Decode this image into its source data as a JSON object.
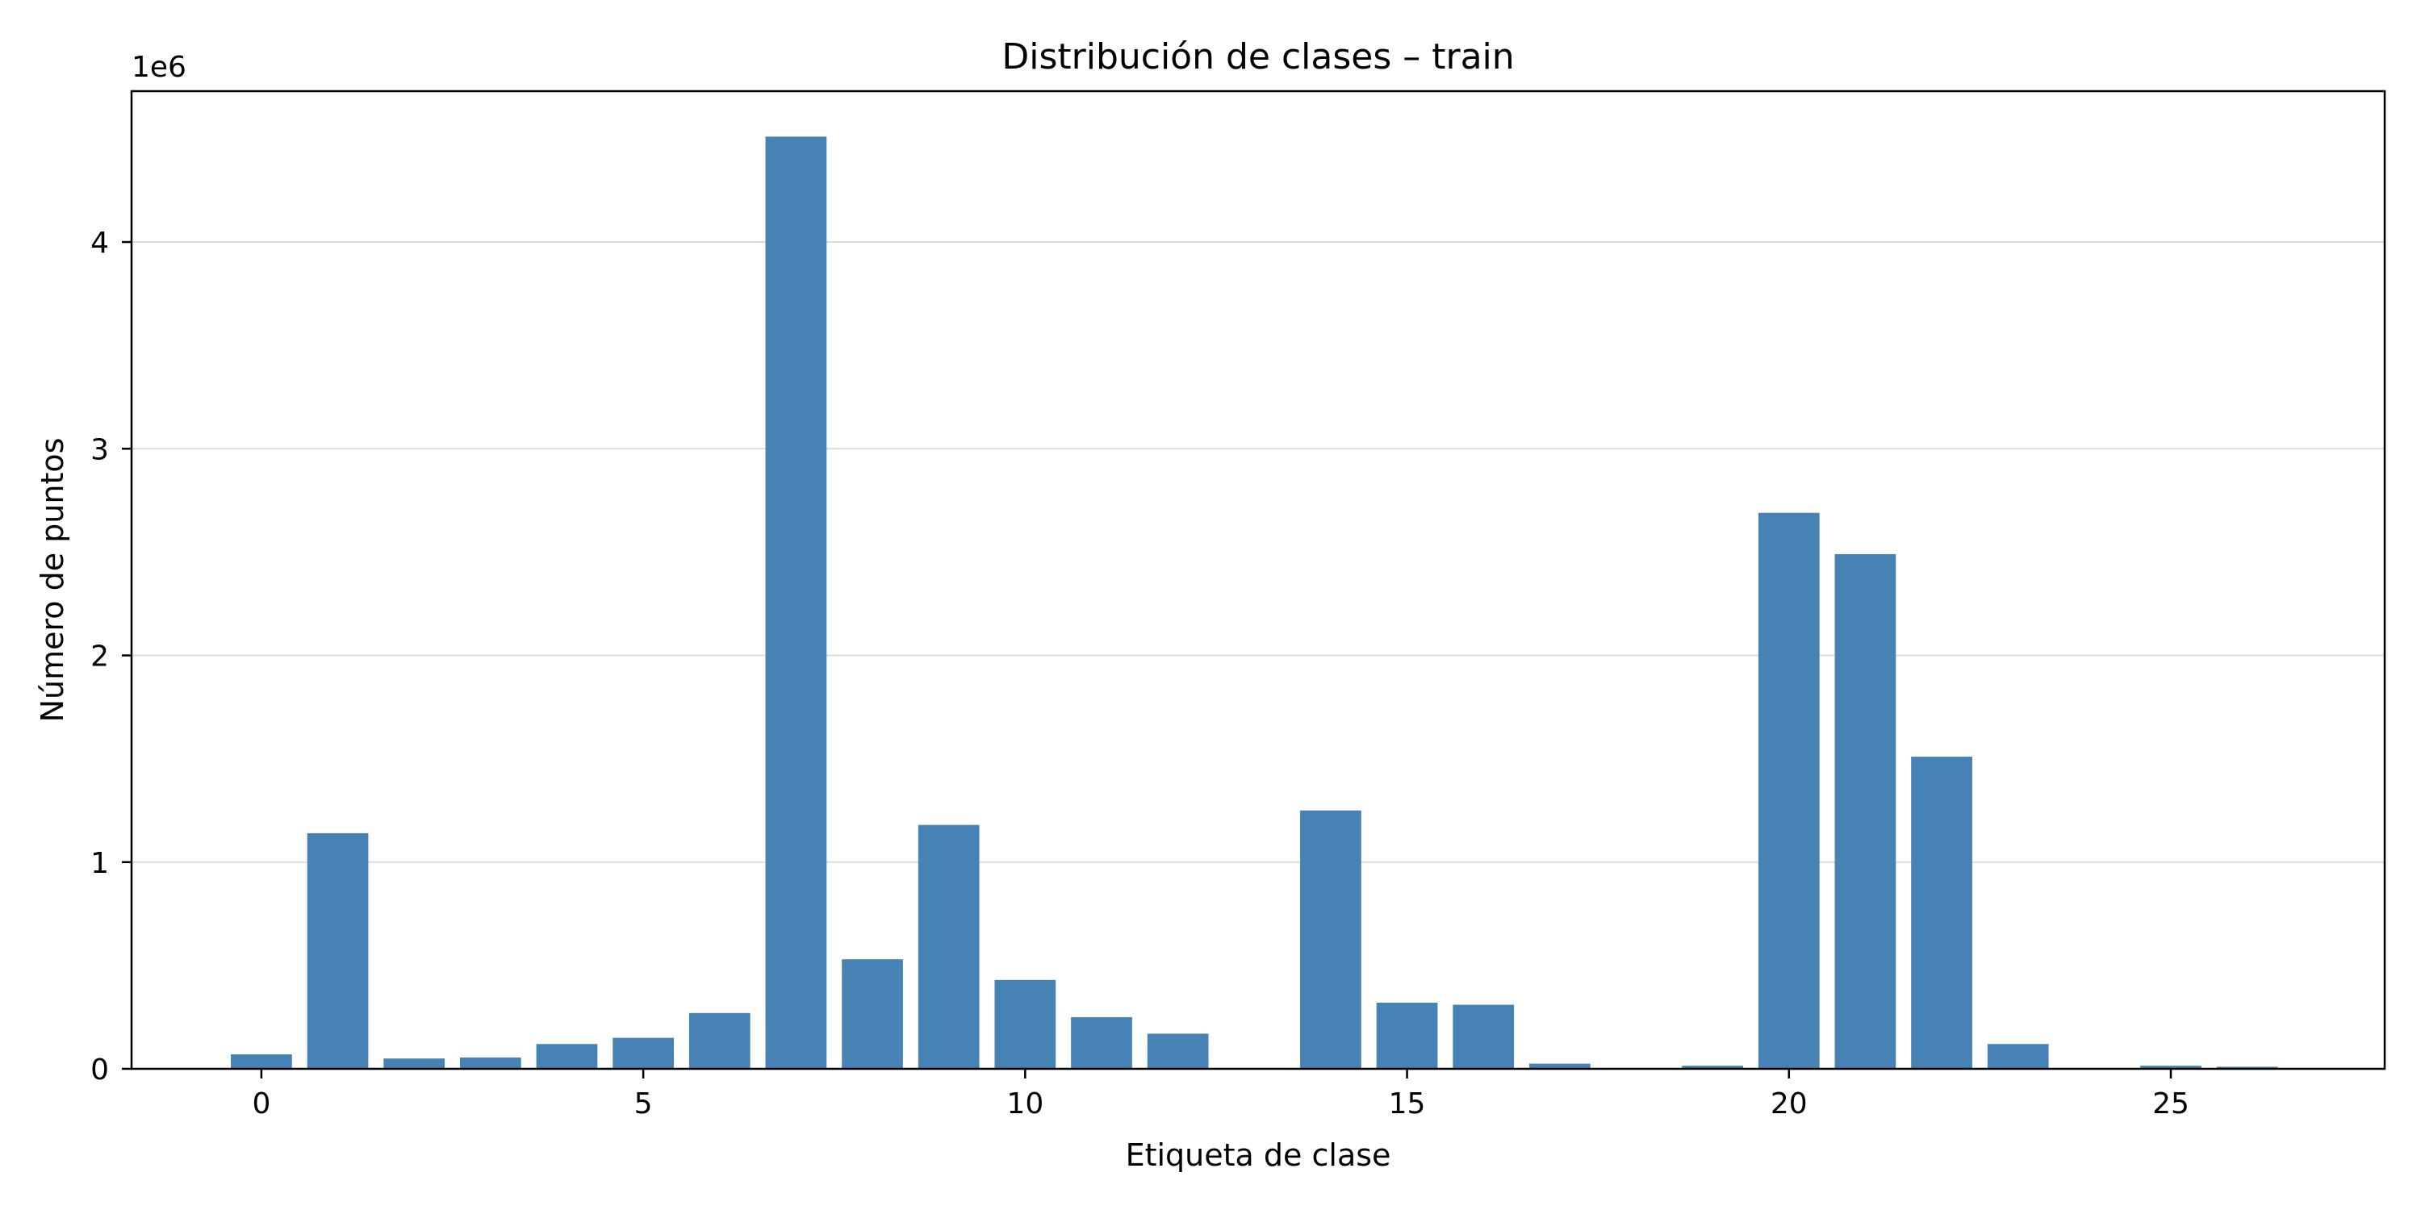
{
  "chart_data": {
    "type": "bar",
    "title": "Distribución de clases – train",
    "xlabel": "Etiqueta de clase",
    "ylabel": "Número de puntos",
    "y_offset_text": "1e6",
    "y_scale": 1000000,
    "bar_color": "#4682b4",
    "grid_color": "#dcdcdc",
    "grid": "y-axis only",
    "xlim": [
      -1.7,
      27.8
    ],
    "ylim": [
      0,
      4.73
    ],
    "xticks": [
      0,
      5,
      10,
      15,
      20,
      25
    ],
    "yticks": [
      0,
      1,
      2,
      3,
      4
    ],
    "x": [
      0,
      1,
      2,
      3,
      4,
      5,
      6,
      7,
      8,
      9,
      10,
      11,
      12,
      13,
      14,
      15,
      16,
      17,
      18,
      19,
      20,
      21,
      22,
      23,
      24,
      25,
      26
    ],
    "values": [
      0.07,
      1.14,
      0.05,
      0.055,
      0.12,
      0.15,
      0.27,
      4.51,
      0.53,
      1.18,
      0.43,
      0.25,
      0.17,
      0,
      1.25,
      0.32,
      0.31,
      0.025,
      0,
      0.015,
      2.69,
      2.49,
      1.51,
      0.12,
      0,
      0.015,
      0.01
    ],
    "bar_width": 0.8
  }
}
